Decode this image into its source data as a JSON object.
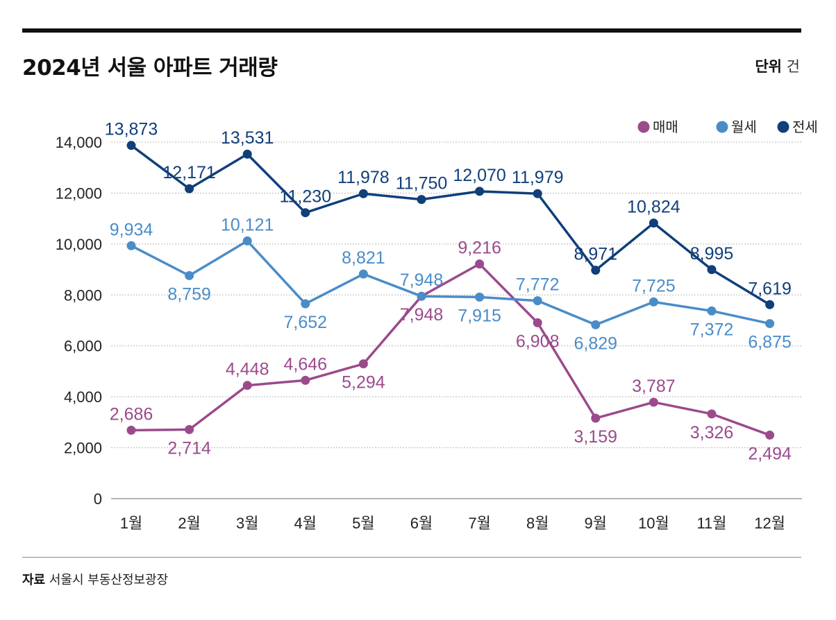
{
  "title": "2024년 서울 아파트 거래량",
  "unit": {
    "label": "단위",
    "value": "건"
  },
  "source": {
    "label": "자료",
    "value": "서울시 부동산정보광장"
  },
  "chart_data": {
    "type": "line",
    "categories": [
      "1월",
      "2월",
      "3월",
      "4월",
      "5월",
      "6월",
      "7월",
      "8월",
      "9월",
      "10월",
      "11월",
      "12월"
    ],
    "ylim": [
      0,
      14000
    ],
    "yticks": [
      0,
      2000,
      4000,
      6000,
      8000,
      10000,
      12000,
      14000
    ],
    "ytick_labels": [
      "0",
      "2,000",
      "4,000",
      "6,000",
      "8,000",
      "10,000",
      "12,000",
      "14,000"
    ],
    "grid": true,
    "legend_position": "top-right",
    "series": [
      {
        "name": "매매",
        "color": "#9b4a8c",
        "values": [
          2686,
          2714,
          4448,
          4646,
          5294,
          7948,
          9216,
          6908,
          3159,
          3787,
          3326,
          2494
        ],
        "labels": [
          "2,686",
          "2,714",
          "4,448",
          "4,646",
          "5,294",
          "7,948",
          "9,216",
          "6,908",
          "3,159",
          "3,787",
          "3,326",
          "2,494"
        ]
      },
      {
        "name": "월세",
        "color": "#4a8cc8",
        "values": [
          9934,
          8759,
          10121,
          7652,
          8821,
          7948,
          7915,
          7772,
          6829,
          7725,
          7372,
          6875
        ],
        "labels": [
          "9,934",
          "8,759",
          "10,121",
          "7,652",
          "8,821",
          "7,948",
          "7,915",
          "7,772",
          "6,829",
          "7,725",
          "7,372",
          "6,875"
        ]
      },
      {
        "name": "전세",
        "color": "#103f7a",
        "values": [
          13873,
          12171,
          13531,
          11230,
          11978,
          11750,
          12070,
          11979,
          8971,
          10824,
          8995,
          7619
        ],
        "labels": [
          "13,873",
          "12,171",
          "13,531",
          "11,230",
          "11,978",
          "11,750",
          "12,070",
          "11,979",
          "8,971",
          "10,824",
          "8,995",
          "7,619"
        ]
      }
    ]
  }
}
